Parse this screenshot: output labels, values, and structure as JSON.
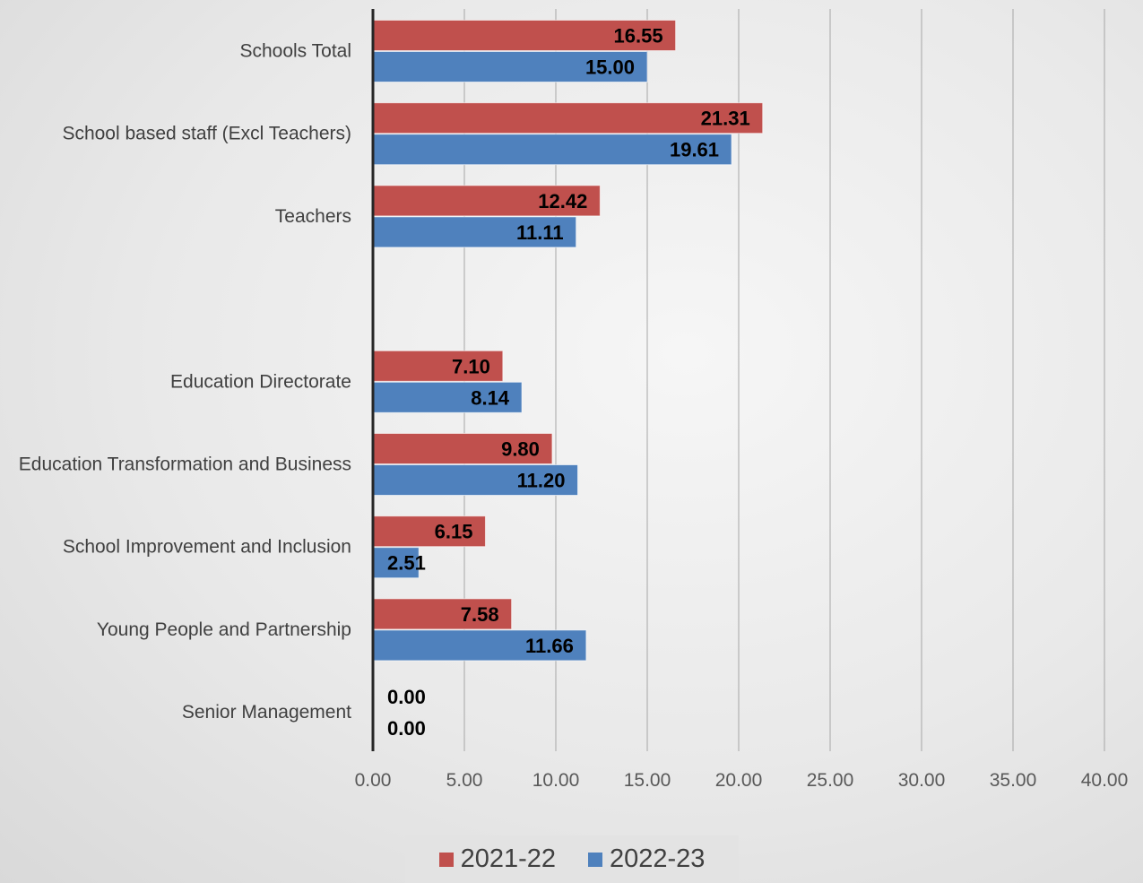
{
  "chart_data": {
    "type": "bar",
    "orientation": "horizontal",
    "categories": [
      "Schools Total",
      "School based staff (Excl Teachers)",
      "Teachers",
      "",
      "Education Directorate",
      "Education Transformation and Business",
      "School Improvement and Inclusion",
      "Young People and Partnership",
      "Senior Management"
    ],
    "series": [
      {
        "name": "2021-22",
        "color": "#c0504d",
        "values": [
          16.55,
          21.31,
          12.42,
          null,
          7.1,
          9.8,
          6.15,
          7.58,
          0.0
        ],
        "labels": [
          "16.55",
          "21.31",
          "12.42",
          "",
          "7.10",
          "9.80",
          "6.15",
          "7.58",
          "0.00"
        ]
      },
      {
        "name": "2022-23",
        "color": "#4f81bd",
        "values": [
          15.0,
          19.61,
          11.11,
          null,
          8.14,
          11.2,
          2.51,
          11.66,
          0.0
        ],
        "labels": [
          "15.00",
          "19.61",
          "11.11",
          "",
          "8.14",
          "11.20",
          "2.51",
          "11.66",
          "0.00"
        ]
      }
    ],
    "xlim": [
      0,
      40
    ],
    "xticks": [
      "0.00",
      "5.00",
      "10.00",
      "15.00",
      "20.00",
      "25.00",
      "30.00",
      "35.00",
      "40.00"
    ],
    "grid": true,
    "legend": "bottom",
    "title": "",
    "xlabel": "",
    "ylabel": ""
  },
  "legend": {
    "items": [
      {
        "label": "2021-22",
        "color": "#c0504d"
      },
      {
        "label": "2022-23",
        "color": "#4f81bd"
      }
    ]
  }
}
